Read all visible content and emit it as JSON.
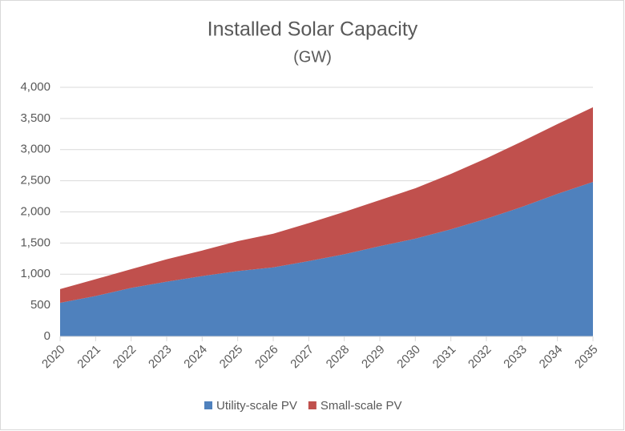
{
  "chart_data": {
    "type": "stacked_area",
    "title": "Installed Solar Capacity",
    "subtitle": "(GW)",
    "categories": [
      "2020",
      "2021",
      "2022",
      "2023",
      "2024",
      "2025",
      "2026",
      "2027",
      "2028",
      "2029",
      "2030",
      "2031",
      "2032",
      "2033",
      "2034",
      "2035"
    ],
    "series": [
      {
        "name": "Utility-scale PV",
        "color": "#4f81bd",
        "values": [
          540,
          650,
          780,
          880,
          970,
          1050,
          1110,
          1210,
          1320,
          1450,
          1570,
          1720,
          1890,
          2080,
          2290,
          2480
        ]
      },
      {
        "name": "Small-scale PV",
        "color": "#c0504d",
        "values": [
          220,
          270,
          300,
          360,
          410,
          480,
          540,
          610,
          680,
          740,
          810,
          890,
          970,
          1050,
          1120,
          1200
        ]
      }
    ],
    "ylim": [
      0,
      4000
    ],
    "yticks": [
      0,
      500,
      {
        "value": 1000,
        "label": "1,000"
      },
      {
        "value": 1500,
        "label": "1,500"
      },
      {
        "value": 2000,
        "label": "2,000"
      },
      {
        "value": 2500,
        "label": "2,500"
      },
      {
        "value": 3000,
        "label": "3,000"
      },
      {
        "value": 3500,
        "label": "3,500"
      },
      {
        "value": 4000,
        "label": "4,000"
      }
    ],
    "grid": true,
    "legend": "bottom"
  }
}
